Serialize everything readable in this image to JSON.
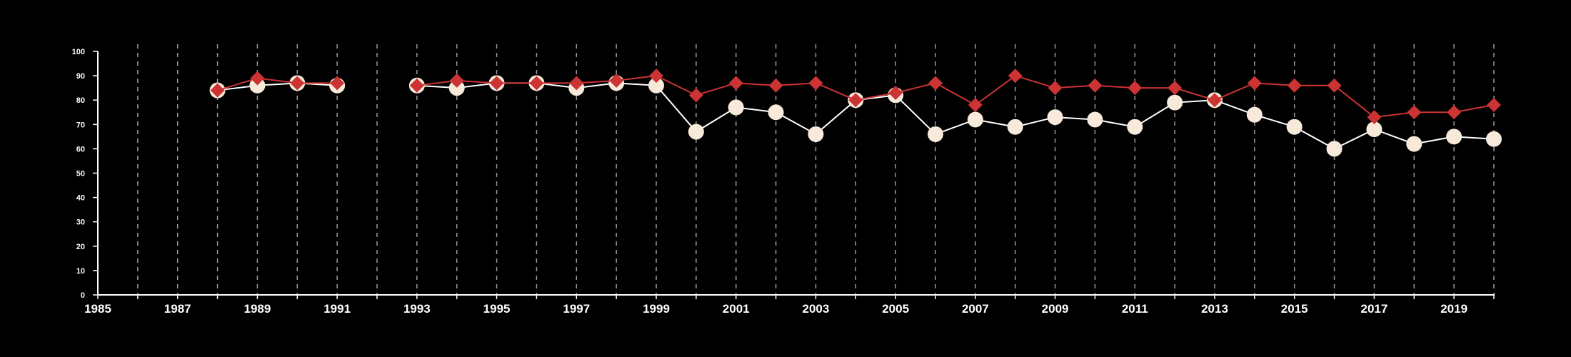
{
  "chart_data": {
    "type": "line",
    "xlim": [
      1985,
      2020
    ],
    "ylim": [
      0,
      100
    ],
    "yticks": [
      "0",
      "10",
      "20",
      "30",
      "40",
      "50",
      "60",
      "70",
      "80",
      "90",
      "100"
    ],
    "xticks": [
      "1985",
      "1987",
      "1989",
      "1991",
      "1993",
      "1995",
      "1997",
      "1999",
      "2001",
      "2003",
      "2005",
      "2007",
      "2009",
      "2011",
      "2013",
      "2015",
      "2017",
      "2019"
    ],
    "grid": "vertical dashed lines at every year",
    "legend": "none",
    "series": [
      {
        "marker": "circle",
        "color": "#f7eadb",
        "line_color": "#ffffff",
        "x": [
          1988,
          1989,
          1990,
          1991,
          1993,
          1994,
          1995,
          1996,
          1997,
          1998,
          1999,
          2000,
          2001,
          2002,
          2003,
          2004,
          2005,
          2006,
          2007,
          2008,
          2009,
          2010,
          2011,
          2012,
          2013,
          2014,
          2015,
          2016,
          2017,
          2018,
          2019,
          2020
        ],
        "y": [
          84,
          86,
          87,
          86,
          86,
          85,
          87,
          87,
          85,
          87,
          86,
          67,
          77,
          75,
          66,
          80,
          82,
          66,
          72,
          69,
          73,
          72,
          69,
          79,
          80,
          74,
          69,
          60,
          68,
          62,
          65,
          64
        ]
      },
      {
        "marker": "diamond",
        "color": "#cc3333",
        "line_color": "#cc3333",
        "x": [
          1988,
          1989,
          1990,
          1991,
          1993,
          1994,
          1995,
          1996,
          1997,
          1998,
          1999,
          2000,
          2001,
          2002,
          2003,
          2004,
          2005,
          2006,
          2007,
          2008,
          2009,
          2010,
          2011,
          2012,
          2013,
          2014,
          2015,
          2016,
          2017,
          2018,
          2019,
          2020
        ],
        "y": [
          84,
          89,
          87,
          87,
          86,
          88,
          87,
          87,
          87,
          88,
          90,
          82,
          87,
          86,
          87,
          80,
          83,
          87,
          78,
          90,
          85,
          86,
          85,
          85,
          80,
          87,
          86,
          86,
          73,
          75,
          75,
          78
        ]
      }
    ]
  }
}
